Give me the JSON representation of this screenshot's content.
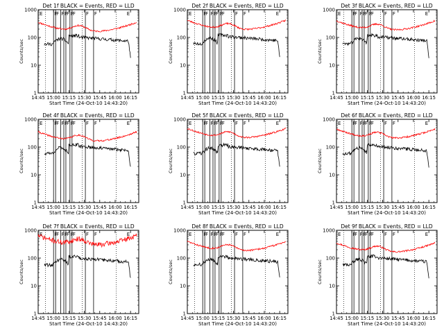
{
  "chart_data": {
    "type": "line",
    "layout": "grid-3x3",
    "ylabel": "Counts/sec",
    "xlabel": "Start Time (24-Oct-10 14:43:20)",
    "yscale": "log",
    "ylim": [
      1,
      1000
    ],
    "y_ticks": [
      "1",
      "10",
      "100",
      "1000"
    ],
    "x_ticks": [
      "14:45",
      "15:00",
      "15:15",
      "15:30",
      "15:45",
      "16:00",
      "16:15"
    ],
    "x_tick_minutes": [
      0,
      15,
      30,
      45,
      60,
      75,
      90
    ],
    "xlim_minutes": [
      0,
      98
    ],
    "line_colors": {
      "events": "#000000",
      "lld": "#ff0000"
    },
    "markers": {
      "F_minutes": [
        15,
        17,
        22,
        25,
        27,
        31,
        33,
        46,
        54
      ],
      "E_minutes": [
        0,
        85
      ]
    },
    "dotted_line_minutes": [
      7,
      43,
      76
    ],
    "panels": [
      {
        "title": "Det 1f BLACK = Events, RED = LLD",
        "seed": 11,
        "black_level": 0.4,
        "red_level": 0.0,
        "noise": 0.03
      },
      {
        "title": "Det 2f BLACK = Events, RED = LLD",
        "seed": 23,
        "black_level": 0.55,
        "red_level": 0.2,
        "noise": 0.03
      },
      {
        "title": "Det 3f BLACK = Events, RED = LLD",
        "seed": 37,
        "black_level": 0.5,
        "red_level": 0.15,
        "noise": 0.03
      },
      {
        "title": "Det 4f BLACK = Events, RED = LLD",
        "seed": 41,
        "black_level": 0.5,
        "red_level": 0.0,
        "noise": 0.03
      },
      {
        "title": "Det 5f BLACK = Events, RED = LLD",
        "seed": 53,
        "black_level": 0.45,
        "red_level": 0.35,
        "noise": 0.03
      },
      {
        "title": "Det 6f BLACK = Events, RED = LLD",
        "seed": 67,
        "black_level": 0.45,
        "red_level": 0.3,
        "noise": 0.03
      },
      {
        "title": "Det 7f BLACK = Events, RED = LLD",
        "seed": 71,
        "black_level": 0.35,
        "red_level": 0.75,
        "noise": 0.09
      },
      {
        "title": "Det 8f BLACK = Events, RED = LLD",
        "seed": 83,
        "black_level": 0.4,
        "red_level": 0.15,
        "noise": 0.03
      },
      {
        "title": "Det 9f BLACK = Events, RED = LLD",
        "seed": 97,
        "black_level": 0.4,
        "red_level": 0.0,
        "noise": 0.03
      }
    ],
    "marker_labels": {
      "flare": "F",
      "eclipse": "E"
    }
  }
}
